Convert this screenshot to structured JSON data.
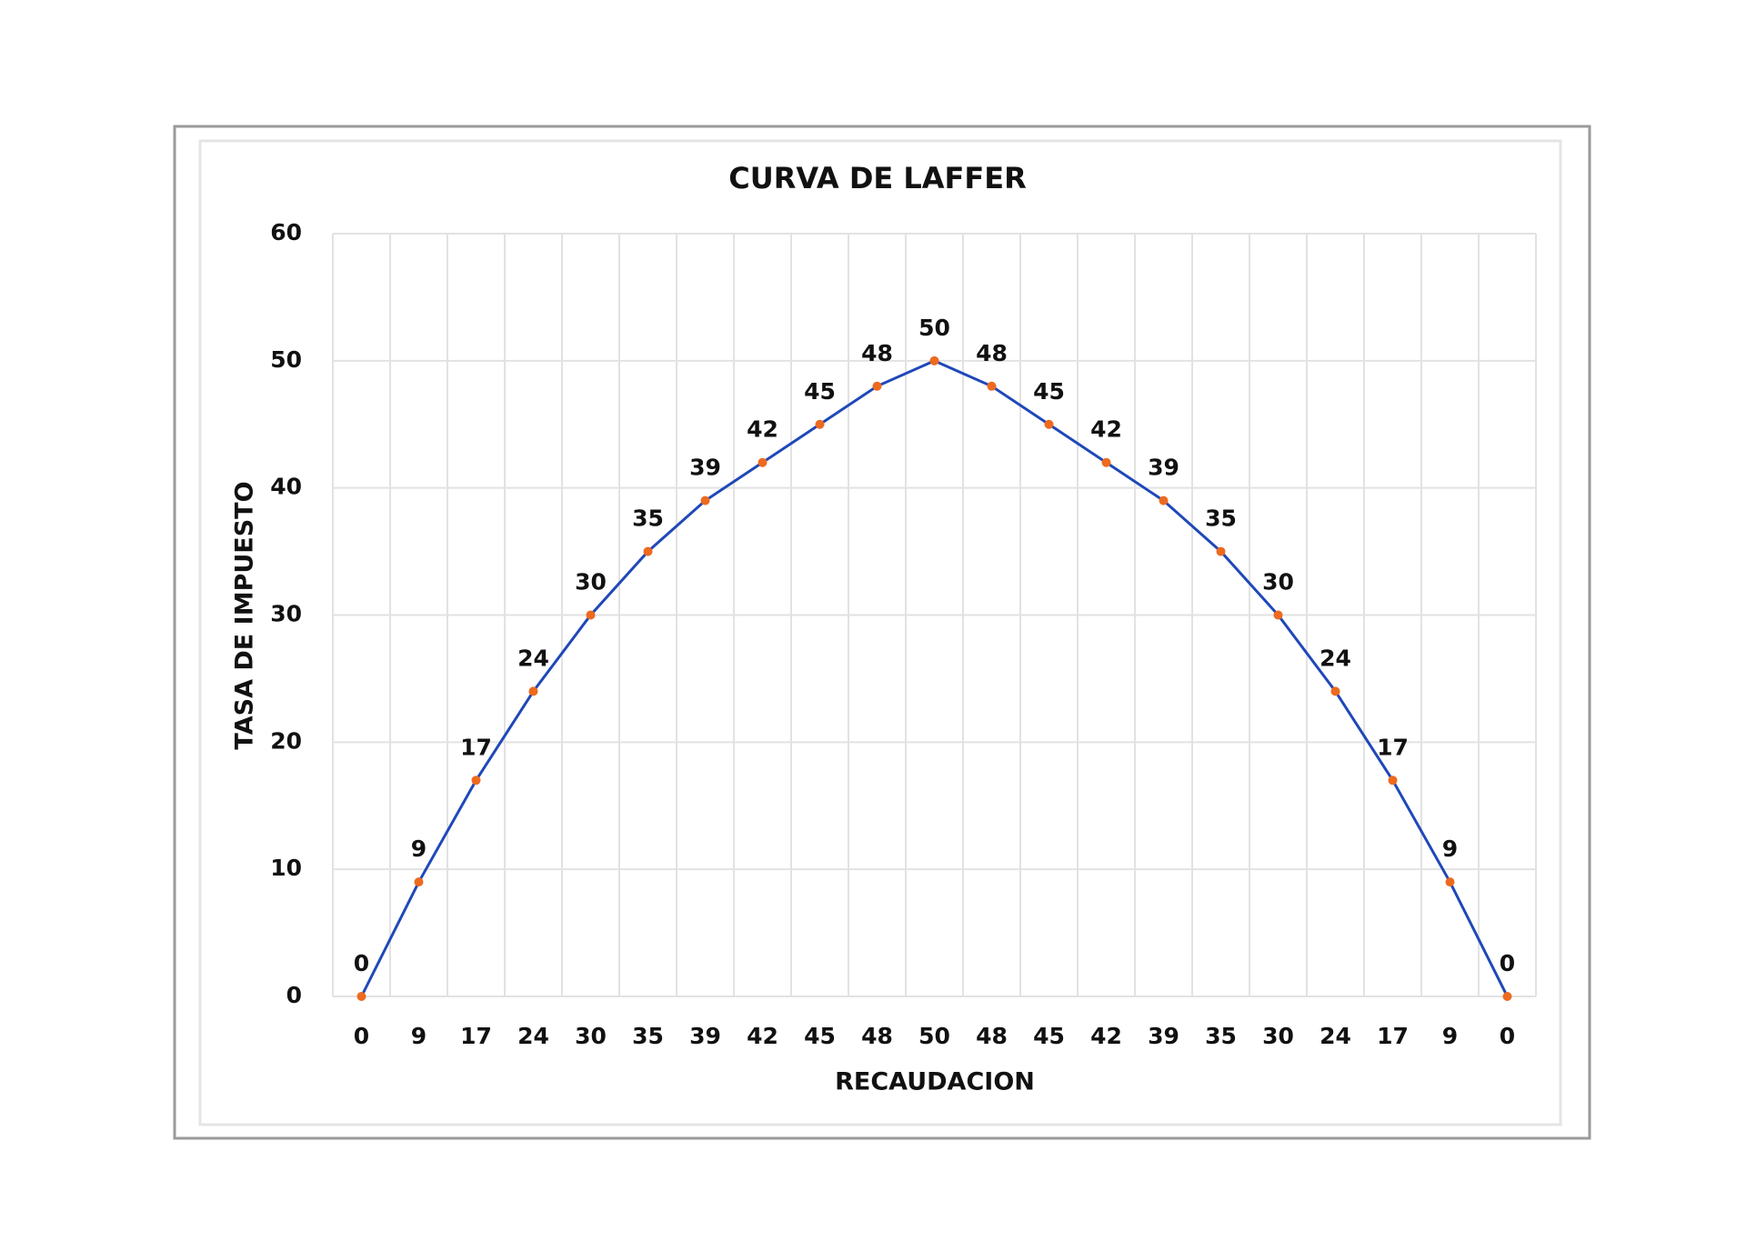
{
  "chart_data": {
    "type": "line",
    "title": "CURVA DE LAFFER",
    "x_label": "RECAUDACION",
    "y_label": "TASA DE IMPUESTO",
    "categories": [
      "0",
      "9",
      "17",
      "24",
      "30",
      "35",
      "39",
      "42",
      "45",
      "48",
      "50",
      "48",
      "45",
      "42",
      "39",
      "35",
      "30",
      "24",
      "17",
      "9",
      "0"
    ],
    "values": [
      0,
      9,
      17,
      24,
      30,
      35,
      39,
      42,
      45,
      48,
      50,
      48,
      45,
      42,
      39,
      35,
      30,
      24,
      17,
      9,
      0
    ],
    "color": "#1f48b8",
    "marker_color": "#ed6a1f",
    "ylim": [
      0,
      60
    ],
    "yticks": [
      0,
      10,
      20,
      30,
      40,
      50,
      60
    ],
    "grid": true
  }
}
